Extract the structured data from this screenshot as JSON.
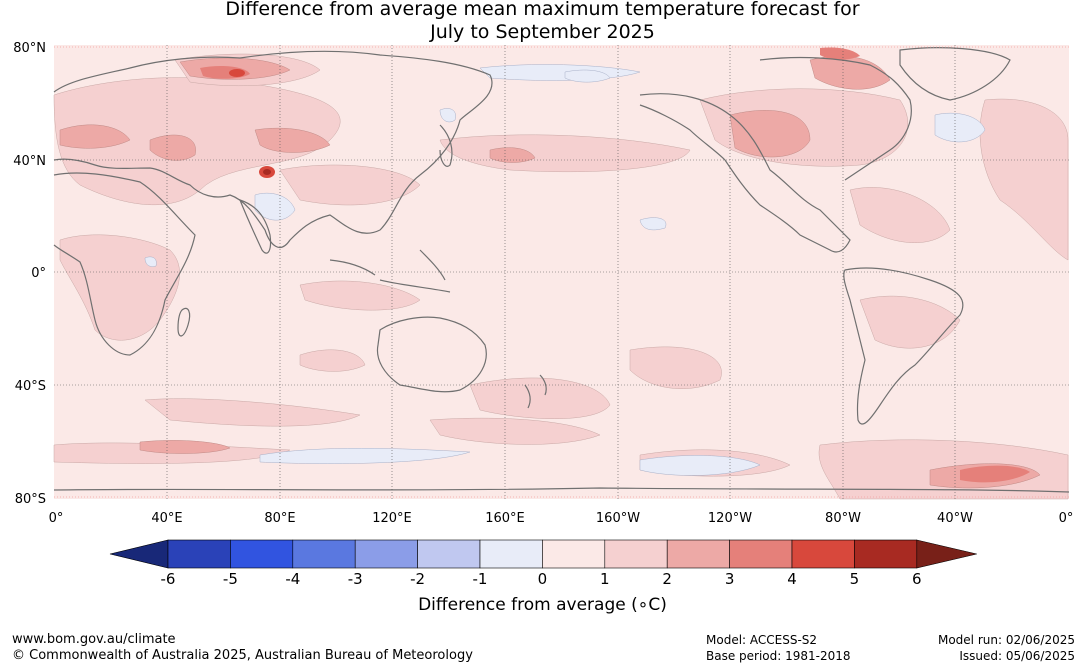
{
  "title": {
    "line1": "Difference from average mean maximum temperature forecast for",
    "line2": "July to September 2025"
  },
  "map": {
    "lat_labels": [
      "80°N",
      "40°N",
      "0°",
      "40°S",
      "80°S"
    ],
    "lon_labels": [
      "0°",
      "40°E",
      "80°E",
      "120°E",
      "160°E",
      "160°W",
      "120°W",
      "80°W",
      "40°W",
      "0°"
    ],
    "background_anomaly_color": "#fbe9e7",
    "coastline_color": "#707070"
  },
  "colorbar": {
    "label": "Difference from average (∘C)",
    "ticks": [
      "-6",
      "-5",
      "-4",
      "-3",
      "-2",
      "-1",
      "0",
      "1",
      "2",
      "3",
      "4",
      "5",
      "6"
    ],
    "colors": [
      "#182878",
      "#2a42b8",
      "#3154e0",
      "#5a78e0",
      "#8b9de8",
      "#c0c8f0",
      "#e8ecf8",
      "#fbe9e7",
      "#f5d0d0",
      "#eda9a6",
      "#e5807a",
      "#d8483c",
      "#a82a22",
      "#782018"
    ]
  },
  "footer": {
    "website": "www.bom.gov.au/climate",
    "copyright": "© Commonwealth of Australia 2025, Australian Bureau of Meteorology",
    "model": "Model: ACCESS-S2",
    "base_period": "Base period: 1981-2018",
    "model_run": "Model run: 02/06/2025",
    "issued": "Issued: 05/06/2025"
  }
}
